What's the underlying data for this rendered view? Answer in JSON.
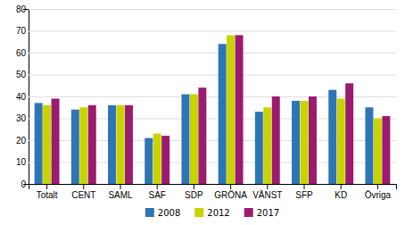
{
  "chart_data": {
    "type": "bar",
    "categories": [
      "Totalt",
      "CENT",
      "SAML",
      "SAF",
      "SDP",
      "GRÖNA",
      "VÄNST",
      "SFP",
      "KD",
      "Övriga"
    ],
    "series": [
      {
        "name": "2008",
        "color": "#2e75b6",
        "values": [
          37,
          34,
          36,
          21,
          41,
          64,
          33,
          38,
          43,
          35
        ]
      },
      {
        "name": "2012",
        "color": "#c8d400",
        "values": [
          36,
          35,
          36,
          23,
          41,
          68,
          35,
          38,
          39,
          30
        ]
      },
      {
        "name": "2017",
        "color": "#9b1b6e",
        "values": [
          39,
          36,
          36,
          22,
          44,
          68,
          40,
          40,
          46,
          31
        ]
      }
    ],
    "ylim": [
      0,
      80
    ],
    "yticks": [
      0,
      10,
      20,
      30,
      40,
      50,
      60,
      70,
      80
    ],
    "grid": true,
    "legend": "bottom"
  }
}
